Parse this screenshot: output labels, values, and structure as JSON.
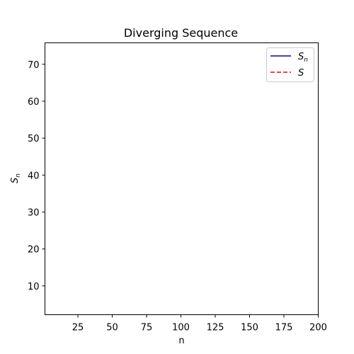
{
  "chart_data": {
    "type": "line",
    "title": "Diverging Sequence",
    "xlabel": "n",
    "ylabel": "S",
    "ylabel_subscript": "n",
    "xlim": [
      1,
      200
    ],
    "ylim": [
      2.2,
      75.8
    ],
    "x_ticks": [
      25,
      50,
      75,
      100,
      125,
      150,
      175,
      200
    ],
    "y_ticks": [
      10,
      20,
      30,
      40,
      50,
      60,
      70
    ],
    "legend_position": "upper-right",
    "series": [
      {
        "name": "S",
        "subscript": "n",
        "color": "#0000cc",
        "style": "solid",
        "x": [],
        "y": []
      },
      {
        "name": "S",
        "subscript": "",
        "color": "#ff0000",
        "style": "dashed",
        "x": [],
        "y": []
      }
    ],
    "grid": false
  }
}
